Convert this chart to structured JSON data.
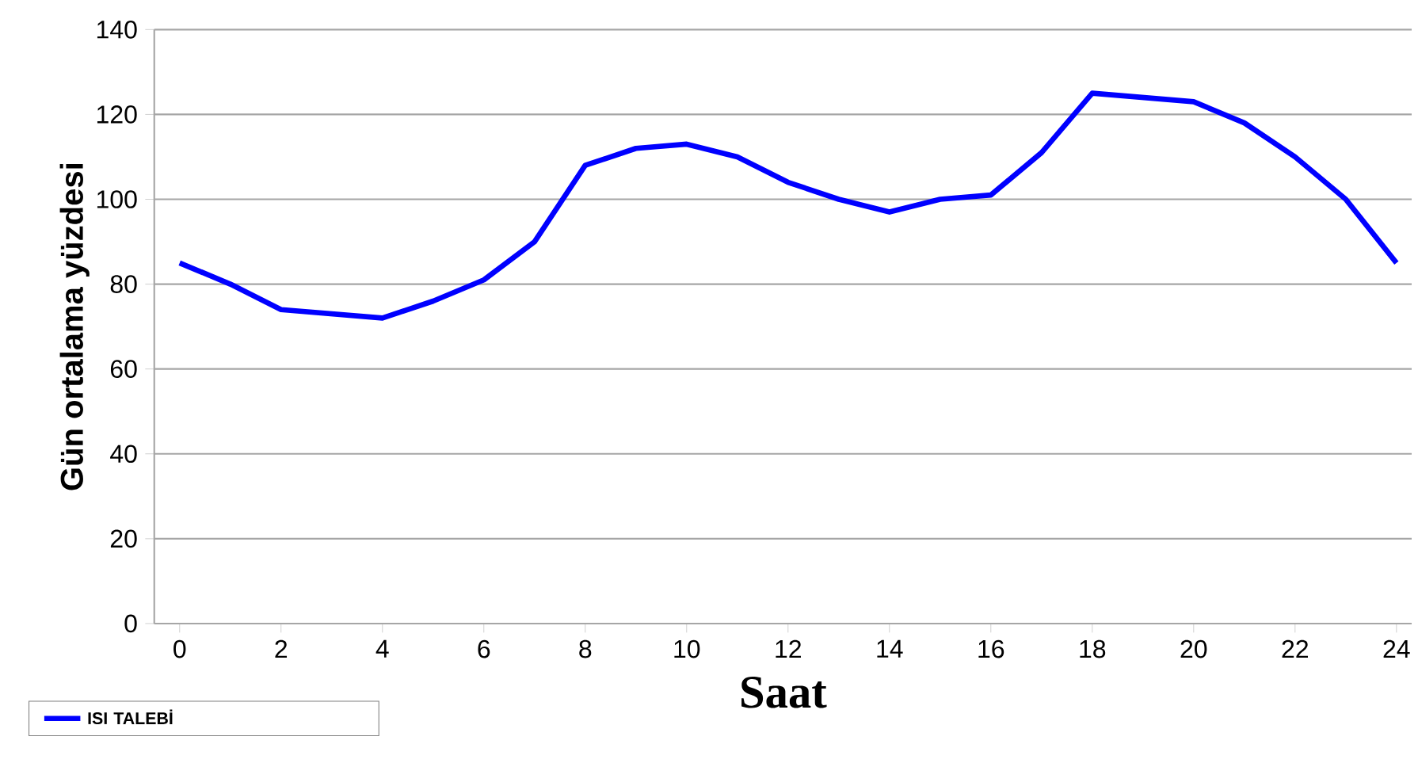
{
  "chart_data": {
    "type": "line",
    "xlabel": "Saat",
    "ylabel": "Gün ortalama yüzdesi",
    "x": [
      0,
      1,
      2,
      3,
      4,
      5,
      6,
      7,
      8,
      9,
      10,
      11,
      12,
      13,
      14,
      15,
      16,
      17,
      18,
      19,
      20,
      21,
      22,
      23,
      24
    ],
    "series": [
      {
        "name": "ISI TALEBİ",
        "color": "#0000ff",
        "values": [
          85,
          80,
          74,
          73,
          72,
          76,
          81,
          90,
          108,
          112,
          113,
          110,
          104,
          100,
          97,
          100,
          101,
          111,
          125,
          124,
          123,
          118,
          110,
          100,
          85
        ]
      }
    ],
    "xlim": [
      -0.5,
      24.3
    ],
    "xticks": [
      0,
      2,
      4,
      6,
      8,
      10,
      12,
      14,
      16,
      18,
      20,
      22,
      24
    ],
    "ylim": [
      0,
      140
    ],
    "yticks": [
      0,
      20,
      40,
      60,
      80,
      100,
      120,
      140
    ],
    "grid": "y",
    "legend": "bottom left",
    "marker": "none",
    "line_style": "solid"
  }
}
